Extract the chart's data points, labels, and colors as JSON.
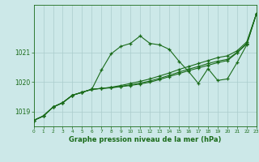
{
  "title": "Graphe pression niveau de la mer (hPa)",
  "background_color": "#cce8e8",
  "grid_color": "#aacccc",
  "line_color": "#1a6b1a",
  "x_min": 0,
  "x_max": 23,
  "y_min": 1018.5,
  "y_max": 1022.6,
  "yticks": [
    1019,
    1020,
    1021
  ],
  "xticks": [
    0,
    1,
    2,
    3,
    4,
    5,
    6,
    7,
    8,
    9,
    10,
    11,
    12,
    13,
    14,
    15,
    16,
    17,
    18,
    19,
    20,
    21,
    22,
    23
  ],
  "series": [
    [
      1018.7,
      1018.85,
      1019.15,
      1019.3,
      1019.55,
      1019.65,
      1019.75,
      1020.4,
      1020.95,
      1021.2,
      1021.3,
      1021.55,
      1021.3,
      1021.25,
      1021.1,
      1020.7,
      1020.35,
      1019.95,
      1020.45,
      1020.05,
      1020.1,
      1020.65,
      1021.25,
      1022.3
    ],
    [
      1018.7,
      1018.85,
      1019.15,
      1019.3,
      1019.55,
      1019.65,
      1019.75,
      1019.78,
      1019.82,
      1019.88,
      1019.95,
      1020.02,
      1020.1,
      1020.2,
      1020.3,
      1020.42,
      1020.52,
      1020.62,
      1020.72,
      1020.82,
      1020.88,
      1021.05,
      1021.35,
      1022.3
    ],
    [
      1018.7,
      1018.85,
      1019.15,
      1019.3,
      1019.55,
      1019.65,
      1019.75,
      1019.78,
      1019.81,
      1019.85,
      1019.9,
      1019.96,
      1020.03,
      1020.12,
      1020.22,
      1020.33,
      1020.43,
      1020.52,
      1020.62,
      1020.7,
      1020.76,
      1021.0,
      1021.3,
      1022.3
    ],
    [
      1018.7,
      1018.85,
      1019.15,
      1019.3,
      1019.55,
      1019.65,
      1019.75,
      1019.78,
      1019.8,
      1019.84,
      1019.88,
      1019.93,
      1019.99,
      1020.08,
      1020.18,
      1020.28,
      1020.38,
      1020.47,
      1020.56,
      1020.65,
      1020.72,
      1020.98,
      1021.28,
      1022.3
    ]
  ]
}
